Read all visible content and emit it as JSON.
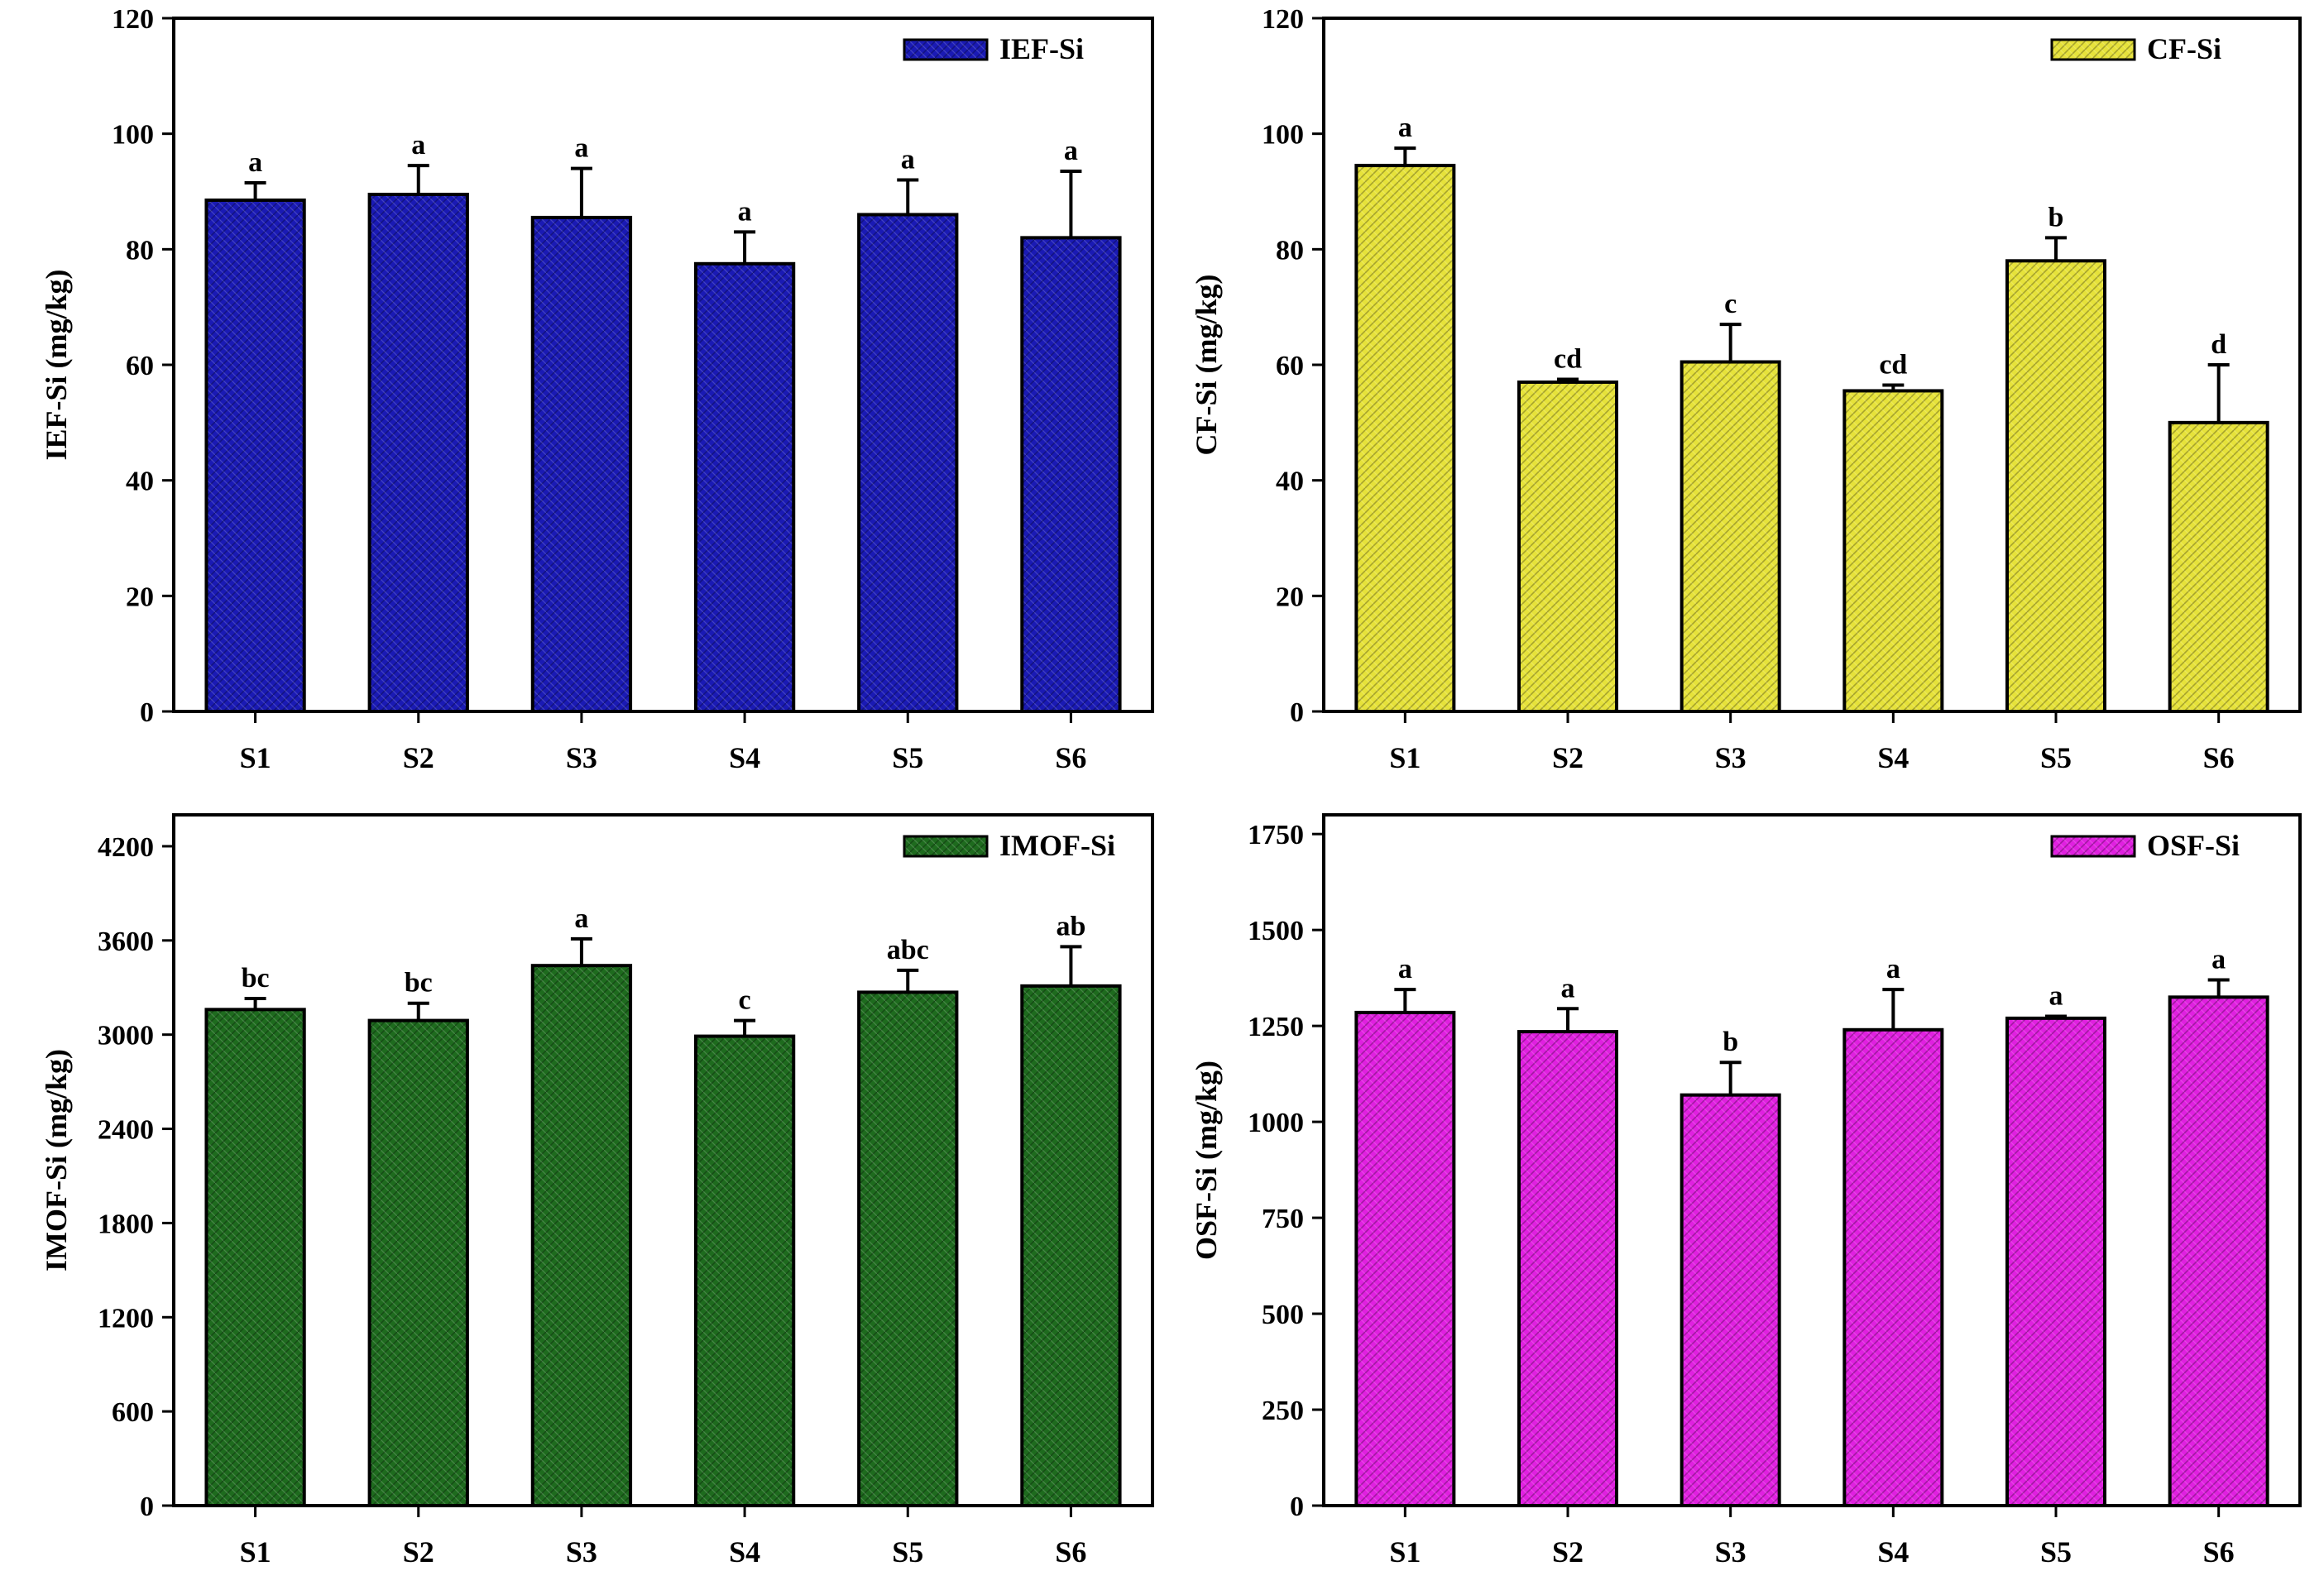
{
  "chart_data": [
    {
      "type": "bar",
      "panel": "top-left",
      "categories": [
        "S1",
        "S2",
        "S3",
        "S4",
        "S5",
        "S6"
      ],
      "series": [
        {
          "name": "IEF-Si",
          "values": [
            88.5,
            89.5,
            85.5,
            77.5,
            86,
            82
          ],
          "errors": [
            3,
            5,
            8.5,
            5.5,
            6,
            11.5
          ],
          "letters": [
            "a",
            "a",
            "a",
            "a",
            "a",
            "a"
          ]
        }
      ],
      "ylabel": "IEF-Si (mg/kg)",
      "ylim": [
        0,
        120
      ],
      "yticks": [
        "0",
        "20",
        "40",
        "60",
        "80",
        "100",
        "120"
      ],
      "color": "#1a1ab4",
      "legend": "top-right"
    },
    {
      "type": "bar",
      "panel": "top-right",
      "categories": [
        "S1",
        "S2",
        "S3",
        "S4",
        "S5",
        "S6"
      ],
      "series": [
        {
          "name": "CF-Si",
          "values": [
            94.5,
            57,
            60.5,
            55.5,
            78,
            50
          ],
          "errors": [
            3,
            0.5,
            6.5,
            1,
            4,
            10
          ],
          "letters": [
            "a",
            "cd",
            "c",
            "cd",
            "b",
            "d"
          ]
        }
      ],
      "ylabel": "CF-Si (mg/kg)",
      "ylim": [
        0,
        120
      ],
      "yticks": [
        "0",
        "20",
        "40",
        "60",
        "80",
        "100",
        "120"
      ],
      "color": "#e6e23a",
      "legend": "top-right"
    },
    {
      "type": "bar",
      "panel": "bottom-left",
      "categories": [
        "S1",
        "S2",
        "S3",
        "S4",
        "S5",
        "S6"
      ],
      "series": [
        {
          "name": "IMOF-Si",
          "values": [
            3160,
            3090,
            3440,
            2990,
            3270,
            3310
          ],
          "errors": [
            70,
            110,
            170,
            100,
            140,
            250
          ],
          "letters": [
            "bc",
            "bc",
            "a",
            "c",
            "abc",
            "ab"
          ]
        }
      ],
      "ylabel": "IMOF-Si (mg/kg)",
      "ylim": [
        0,
        4400
      ],
      "yticks": [
        "0",
        "600",
        "1200",
        "1800",
        "2400",
        "3000",
        "3600",
        "4200"
      ],
      "color": "#1e6b1e",
      "legend": "top-right"
    },
    {
      "type": "bar",
      "panel": "bottom-right",
      "categories": [
        "S1",
        "S2",
        "S3",
        "S4",
        "S5",
        "S6"
      ],
      "series": [
        {
          "name": "OSF-Si",
          "values": [
            1285,
            1235,
            1070,
            1240,
            1270,
            1325
          ],
          "errors": [
            60,
            60,
            85,
            105,
            5,
            45
          ],
          "letters": [
            "a",
            "a",
            "b",
            "a",
            "a",
            "a"
          ]
        }
      ],
      "ylabel": "OSF-Si (mg/kg)",
      "ylim": [
        0,
        1800
      ],
      "yticks": [
        "0",
        "250",
        "500",
        "750",
        "1000",
        "1250",
        "1500",
        "1750"
      ],
      "color": "#e020e0",
      "legend": "top-right"
    }
  ]
}
